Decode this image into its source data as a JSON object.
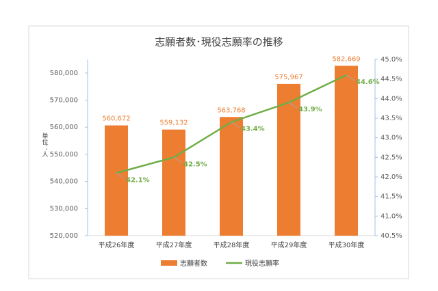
{
  "chart_data": {
    "type": "bar-line",
    "title": "志願者数･現役志願率の推移",
    "y_label": "単位：人",
    "categories": [
      "平成26年度",
      "平成27年度",
      "平成28年度",
      "平成29年度",
      "平成30年度"
    ],
    "series": [
      {
        "name": "志願者数",
        "type": "bar",
        "color": "#ED7D31",
        "values": [
          560672,
          559132,
          563768,
          575967,
          582669
        ],
        "value_labels": [
          "560,672",
          "559,132",
          "563,768",
          "575,967",
          "582,669"
        ]
      },
      {
        "name": "現役志願率",
        "type": "line",
        "axis": "y2",
        "color": "#70AD47",
        "values": [
          42.1,
          42.5,
          43.4,
          43.9,
          44.6
        ],
        "value_labels": [
          "42.1%",
          "42.5%",
          "43.4%",
          "43.9%",
          "44.6%"
        ]
      }
    ],
    "ylim": [
      520000,
      585000
    ],
    "yticks": [
      {
        "value": 520000,
        "label": "520,000"
      },
      {
        "value": 530000,
        "label": "530,000"
      },
      {
        "value": 540000,
        "label": "540,000"
      },
      {
        "value": 550000,
        "label": "550,000"
      },
      {
        "value": 560000,
        "label": "560,000"
      },
      {
        "value": 570000,
        "label": "570,000"
      },
      {
        "value": 580000,
        "label": "580,000"
      }
    ],
    "y2lim": [
      40.5,
      45.0
    ],
    "y2ticks": [
      {
        "value": 40.5,
        "label": "40.5%"
      },
      {
        "value": 41.0,
        "label": "41.0%"
      },
      {
        "value": 41.5,
        "label": "41.5%"
      },
      {
        "value": 42.0,
        "label": "42.0%"
      },
      {
        "value": 42.5,
        "label": "42.5%"
      },
      {
        "value": 43.0,
        "label": "43.0%"
      },
      {
        "value": 43.5,
        "label": "43.5%"
      },
      {
        "value": 44.0,
        "label": "44.0%"
      },
      {
        "value": 44.5,
        "label": "44.5%"
      },
      {
        "value": 45.0,
        "label": "45.0%"
      }
    ],
    "grid": false,
    "legend": "bottom"
  }
}
